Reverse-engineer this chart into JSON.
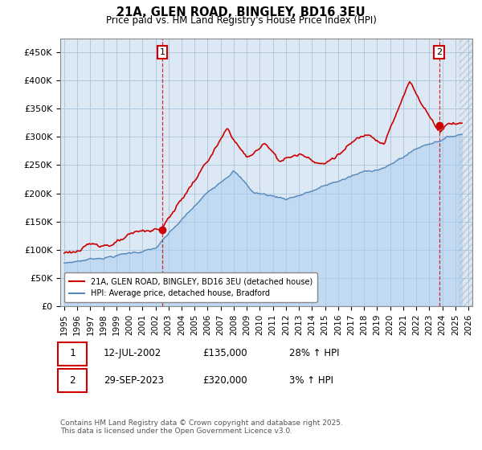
{
  "title": "21A, GLEN ROAD, BINGLEY, BD16 3EU",
  "subtitle": "Price paid vs. HM Land Registry's House Price Index (HPI)",
  "ylim": [
    0,
    475000
  ],
  "xlim_start": 1994.7,
  "xlim_end": 2026.3,
  "background_color": "#ffffff",
  "plot_bg_color": "#dce9f5",
  "grid_color": "#b0c8e0",
  "sale1": {
    "date_num": 2002.53,
    "price": 135000,
    "label": "1",
    "date_str": "12-JUL-2002",
    "hpi_pct": "28% ↑ HPI"
  },
  "sale2": {
    "date_num": 2023.75,
    "price": 320000,
    "label": "2",
    "date_str": "29-SEP-2023",
    "hpi_pct": "3% ↑ HPI"
  },
  "red_line_color": "#cc0000",
  "blue_line_color": "#5588bb",
  "blue_fill_color": "#aaccee",
  "annotation_box_color": "#cc0000",
  "vline_color": "#cc0000",
  "legend_label_red": "21A, GLEN ROAD, BINGLEY, BD16 3EU (detached house)",
  "legend_label_blue": "HPI: Average price, detached house, Bradford",
  "footnote": "Contains HM Land Registry data © Crown copyright and database right 2025.\nThis data is licensed under the Open Government Licence v3.0.",
  "ytick_labels": [
    "£0",
    "£50K",
    "£100K",
    "£150K",
    "£200K",
    "£250K",
    "£300K",
    "£350K",
    "£400K",
    "£450K"
  ],
  "ytick_values": [
    0,
    50000,
    100000,
    150000,
    200000,
    250000,
    300000,
    350000,
    400000,
    450000
  ],
  "xtick_years": [
    1995,
    1996,
    1997,
    1998,
    1999,
    2000,
    2001,
    2002,
    2003,
    2004,
    2005,
    2006,
    2007,
    2008,
    2009,
    2010,
    2011,
    2012,
    2013,
    2014,
    2015,
    2016,
    2017,
    2018,
    2019,
    2020,
    2021,
    2022,
    2023,
    2024,
    2025,
    2026
  ]
}
